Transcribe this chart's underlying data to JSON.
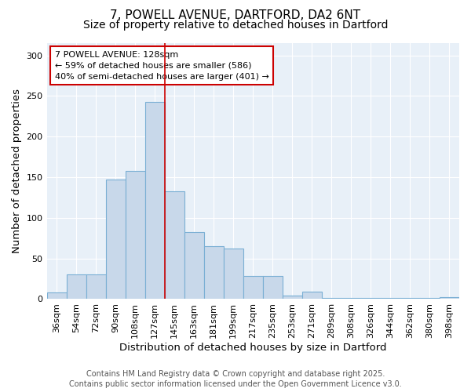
{
  "title_line1": "7, POWELL AVENUE, DARTFORD, DA2 6NT",
  "title_line2": "Size of property relative to detached houses in Dartford",
  "xlabel": "Distribution of detached houses by size in Dartford",
  "ylabel": "Number of detached properties",
  "bar_labels": [
    "36sqm",
    "54sqm",
    "72sqm",
    "90sqm",
    "108sqm",
    "127sqm",
    "145sqm",
    "163sqm",
    "181sqm",
    "199sqm",
    "217sqm",
    "235sqm",
    "253sqm",
    "271sqm",
    "289sqm",
    "308sqm",
    "326sqm",
    "344sqm",
    "362sqm",
    "380sqm",
    "398sqm"
  ],
  "bar_values": [
    8,
    30,
    30,
    147,
    158,
    243,
    133,
    82,
    65,
    62,
    28,
    28,
    4,
    9,
    1,
    1,
    1,
    1,
    1,
    1,
    2
  ],
  "bar_color": "#c8d8ea",
  "bar_edgecolor": "#7aafd4",
  "bar_linewidth": 0.8,
  "vline_index": 5,
  "vline_color": "#cc0000",
  "vline_linewidth": 1.2,
  "annotation_title": "7 POWELL AVENUE: 128sqm",
  "annotation_line1": "← 59% of detached houses are smaller (586)",
  "annotation_line2": "40% of semi-detached houses are larger (401) →",
  "annotation_box_edgecolor": "#cc0000",
  "annotation_box_facecolor": "#ffffff",
  "ylim": [
    0,
    315
  ],
  "yticks": [
    0,
    50,
    100,
    150,
    200,
    250,
    300
  ],
  "bg_color": "#ffffff",
  "plot_bg_color": "#e8f0f8",
  "grid_color": "#ffffff",
  "footer_line1": "Contains HM Land Registry data © Crown copyright and database right 2025.",
  "footer_line2": "Contains public sector information licensed under the Open Government Licence v3.0.",
  "title_fontsize": 11,
  "subtitle_fontsize": 10,
  "axis_label_fontsize": 9.5,
  "tick_fontsize": 8,
  "annotation_fontsize": 8,
  "footer_fontsize": 7
}
